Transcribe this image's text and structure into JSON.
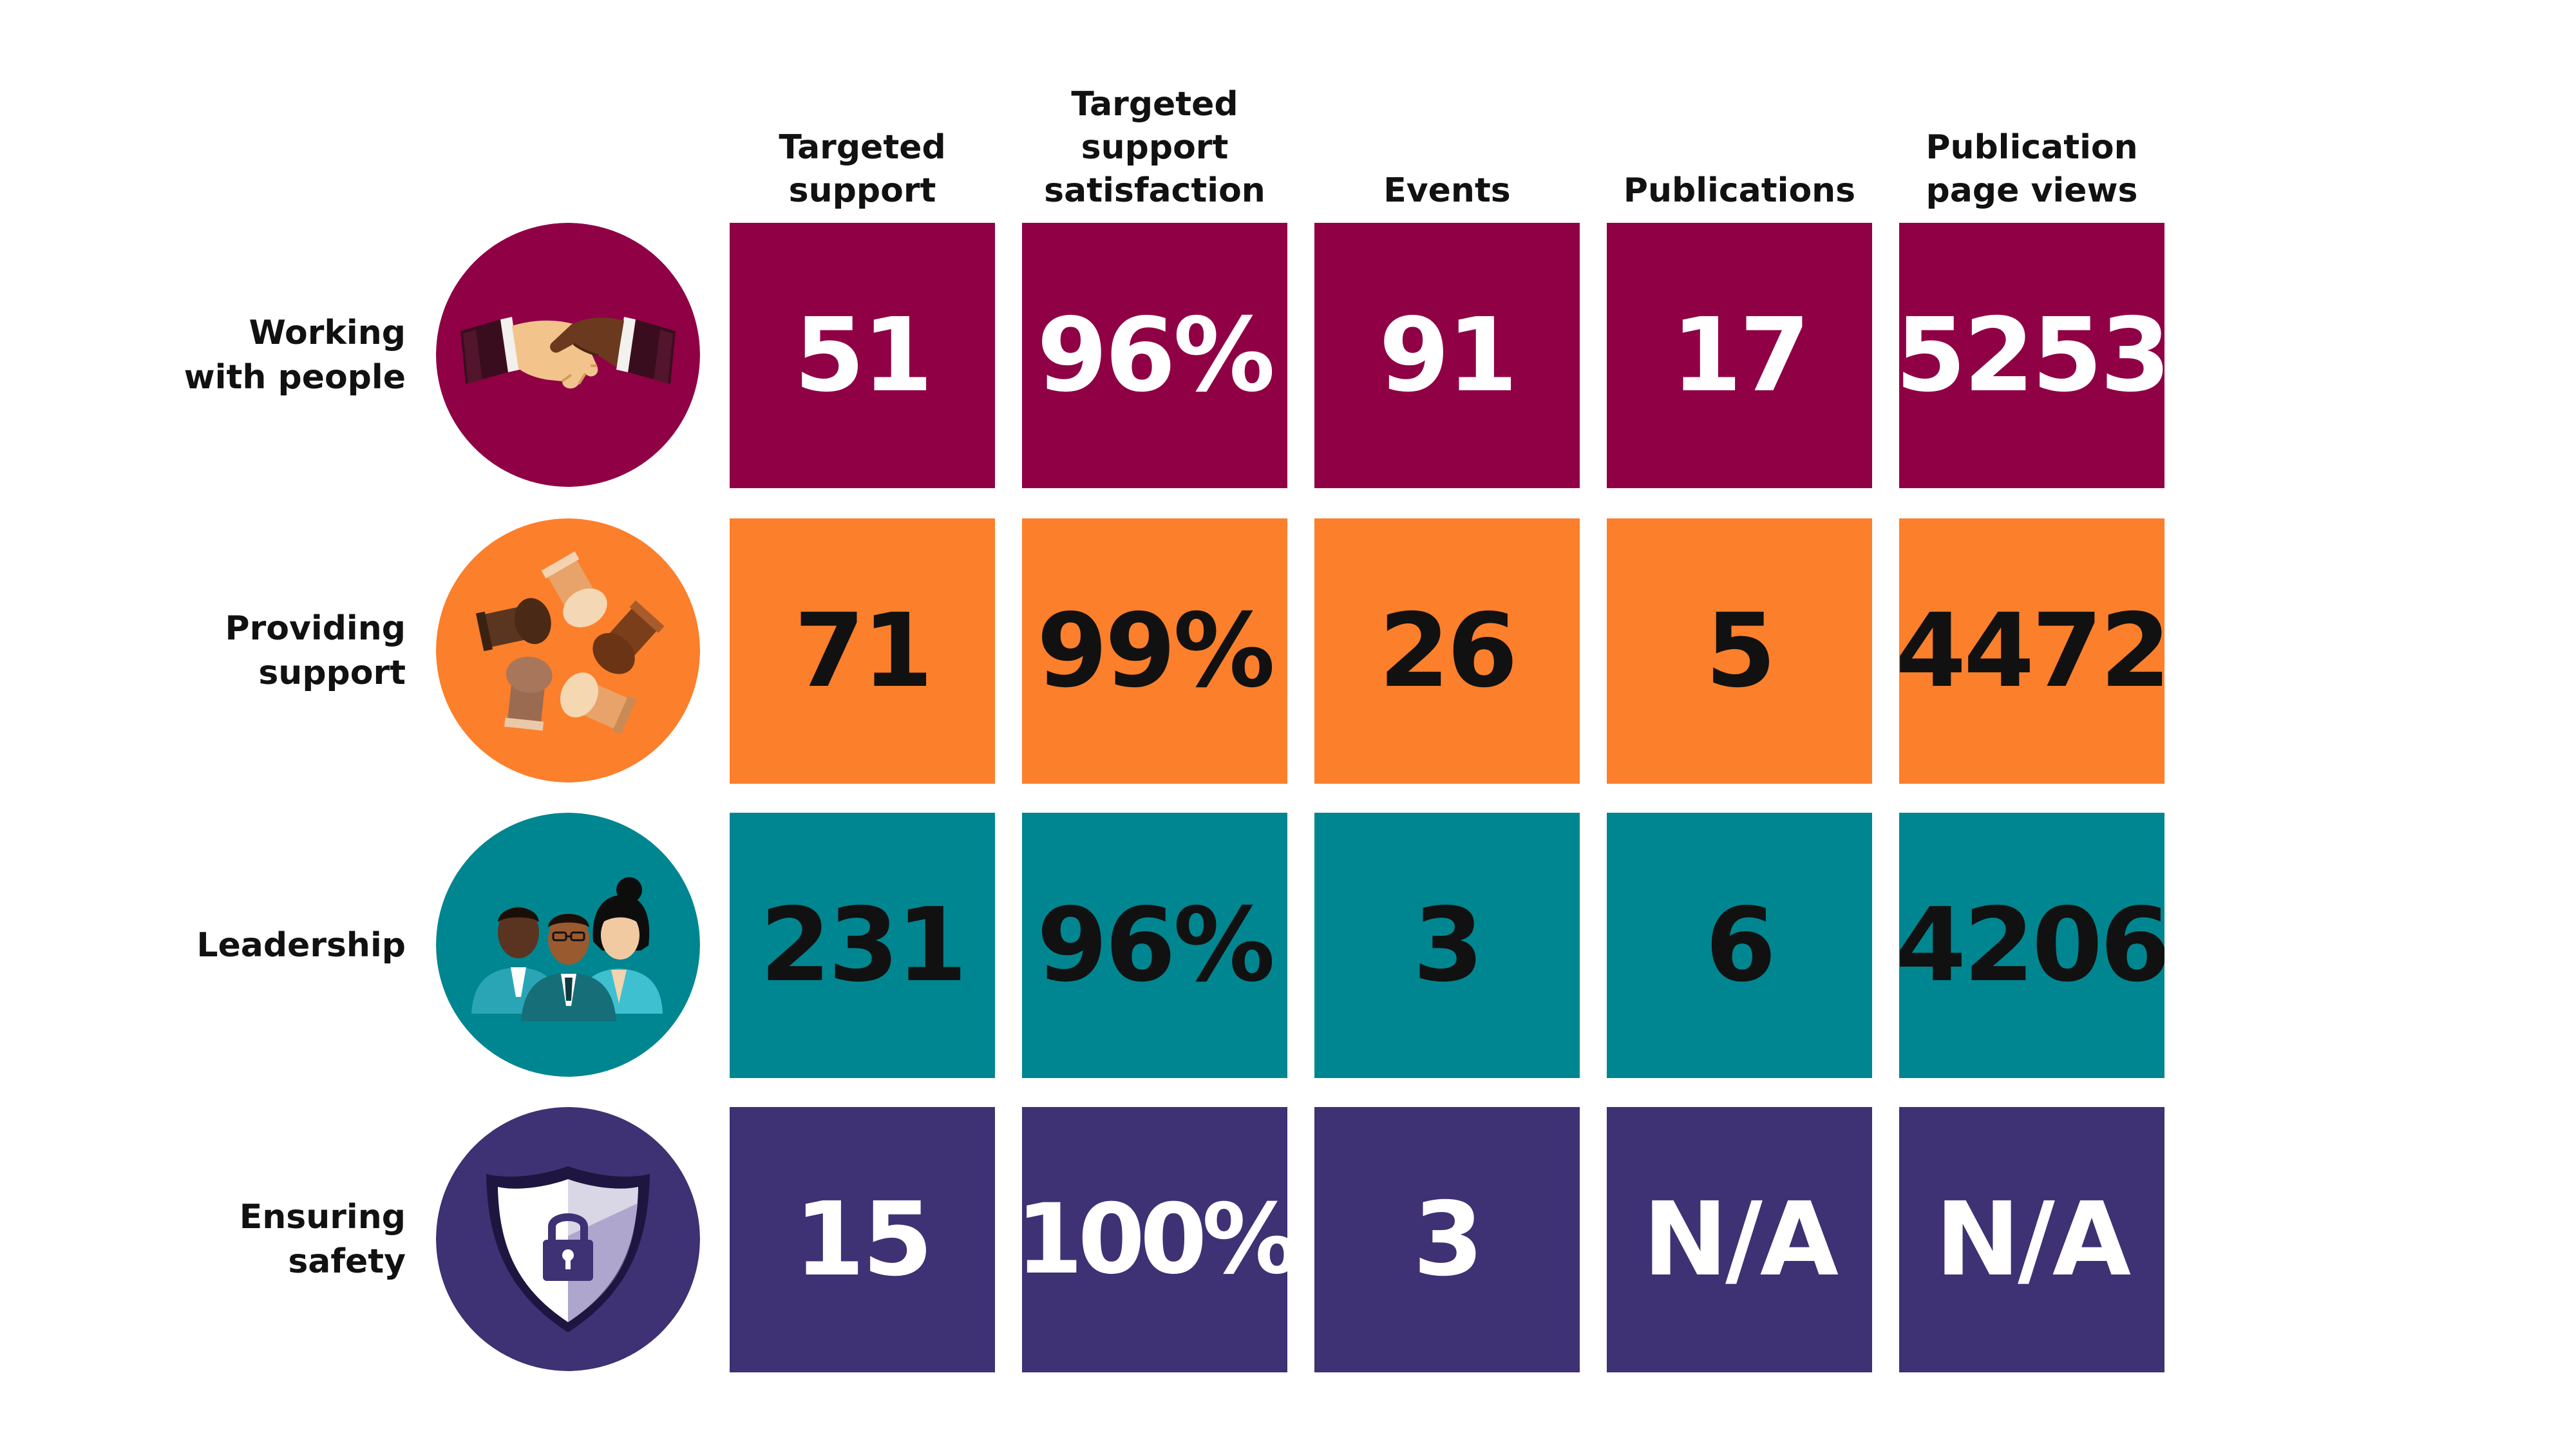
{
  "chart_data": {
    "type": "table",
    "columns": [
      "Targeted support",
      "Targeted support satisfaction",
      "Events",
      "Publications",
      "Publication page views"
    ],
    "rows": [
      {
        "label": "Working with people",
        "icon": "handshake-icon",
        "color": "#8f0045",
        "text_color": "#ffffff",
        "values": [
          "51",
          "96%",
          "91",
          "17",
          "5253"
        ]
      },
      {
        "label": "Providing support",
        "icon": "joined-hands-icon",
        "color": "#fc7f2b",
        "text_color": "#111111",
        "values": [
          "71",
          "99%",
          "26",
          "5",
          "4472"
        ]
      },
      {
        "label": "Leadership",
        "icon": "team-people-icon",
        "color": "#008690",
        "text_color": "#111111",
        "values": [
          "231",
          "96%",
          "3",
          "6",
          "4206"
        ]
      },
      {
        "label": "Ensuring safety",
        "icon": "shield-lock-icon",
        "color": "#3e3174",
        "text_color": "#ffffff",
        "values": [
          "15",
          "100%",
          "3",
          "N/A",
          "N/A"
        ]
      }
    ]
  },
  "headers": {
    "col0": [
      "Targeted",
      "support"
    ],
    "col1": [
      "Targeted",
      "support",
      "satisfaction"
    ],
    "col2": [
      "Events"
    ],
    "col3": [
      "Publications"
    ],
    "col4": [
      "Publication",
      "page views"
    ]
  },
  "row_labels": {
    "row0": [
      "Working",
      "with people"
    ],
    "row1": [
      "Providing",
      "support"
    ],
    "row2": [
      "Leadership"
    ],
    "row3": [
      "Ensuring",
      "safety"
    ]
  }
}
